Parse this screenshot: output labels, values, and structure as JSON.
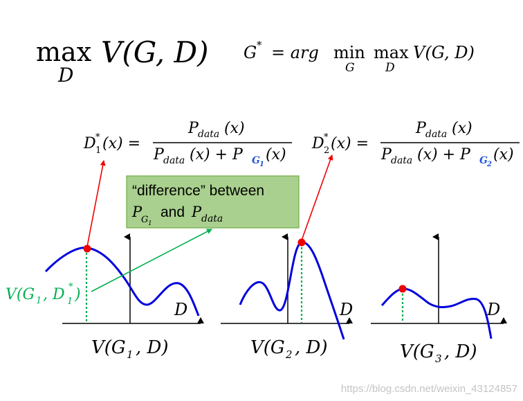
{
  "formulas": {
    "max_op": "max",
    "max_sub": "D",
    "max_body": "V(G, D)",
    "g_star": "G",
    "g_star_sup": "*",
    "g_star_eq": "= arg",
    "min_op": "min",
    "min_sub": "G",
    "max2_op": "max",
    "max2_sub": "D",
    "g_star_body": "V(G, D)",
    "d1_lhs": "D",
    "d1_sup": "*",
    "d1_sub": "1",
    "d1_arg": "(x) =",
    "d2_lhs": "D",
    "d2_sup": "*",
    "d2_sub": "2",
    "d2_arg": "(x) =",
    "num": "P",
    "num_sub": "data",
    "num_arg": "(x)",
    "den_a": "P",
    "den_a_sub": "data",
    "den_a_arg": "(x) + P",
    "den_g1_sub": "G",
    "den_g1_subsub": "1",
    "den_g2_sub": "G",
    "den_g2_subsub": "2",
    "den_end": "(x)"
  },
  "callout": {
    "line1": "“difference” between",
    "p": "P",
    "p_sub": "G",
    "p_subsub": "1",
    "and": "and",
    "p2": "P",
    "p2_sub": "data"
  },
  "annotation": {
    "v": "V(G",
    "g_sub": "1",
    "mid": ", D",
    "d_sup": "*",
    "d_sub": "1",
    "end": ")"
  },
  "plots": [
    {
      "axis_label": "D",
      "caption_a": "V(G",
      "caption_sub": "1",
      "caption_b": ", D)"
    },
    {
      "axis_label": "D",
      "caption_a": "V(G",
      "caption_sub": "2",
      "caption_b": ", D)"
    },
    {
      "axis_label": "D",
      "caption_a": "V(G",
      "caption_sub": "3",
      "caption_b": ", D)"
    }
  ],
  "watermark": "https://blog.csdn.net/weixin_43124857",
  "colors": {
    "curve": "#0000dd",
    "point": "#ee0000",
    "arrow_red": "#ee0000",
    "green": "#00b050",
    "callout_fill": "#a9d08e",
    "callout_border": "#70ad47",
    "g_sub_blue": "#2255dd"
  }
}
